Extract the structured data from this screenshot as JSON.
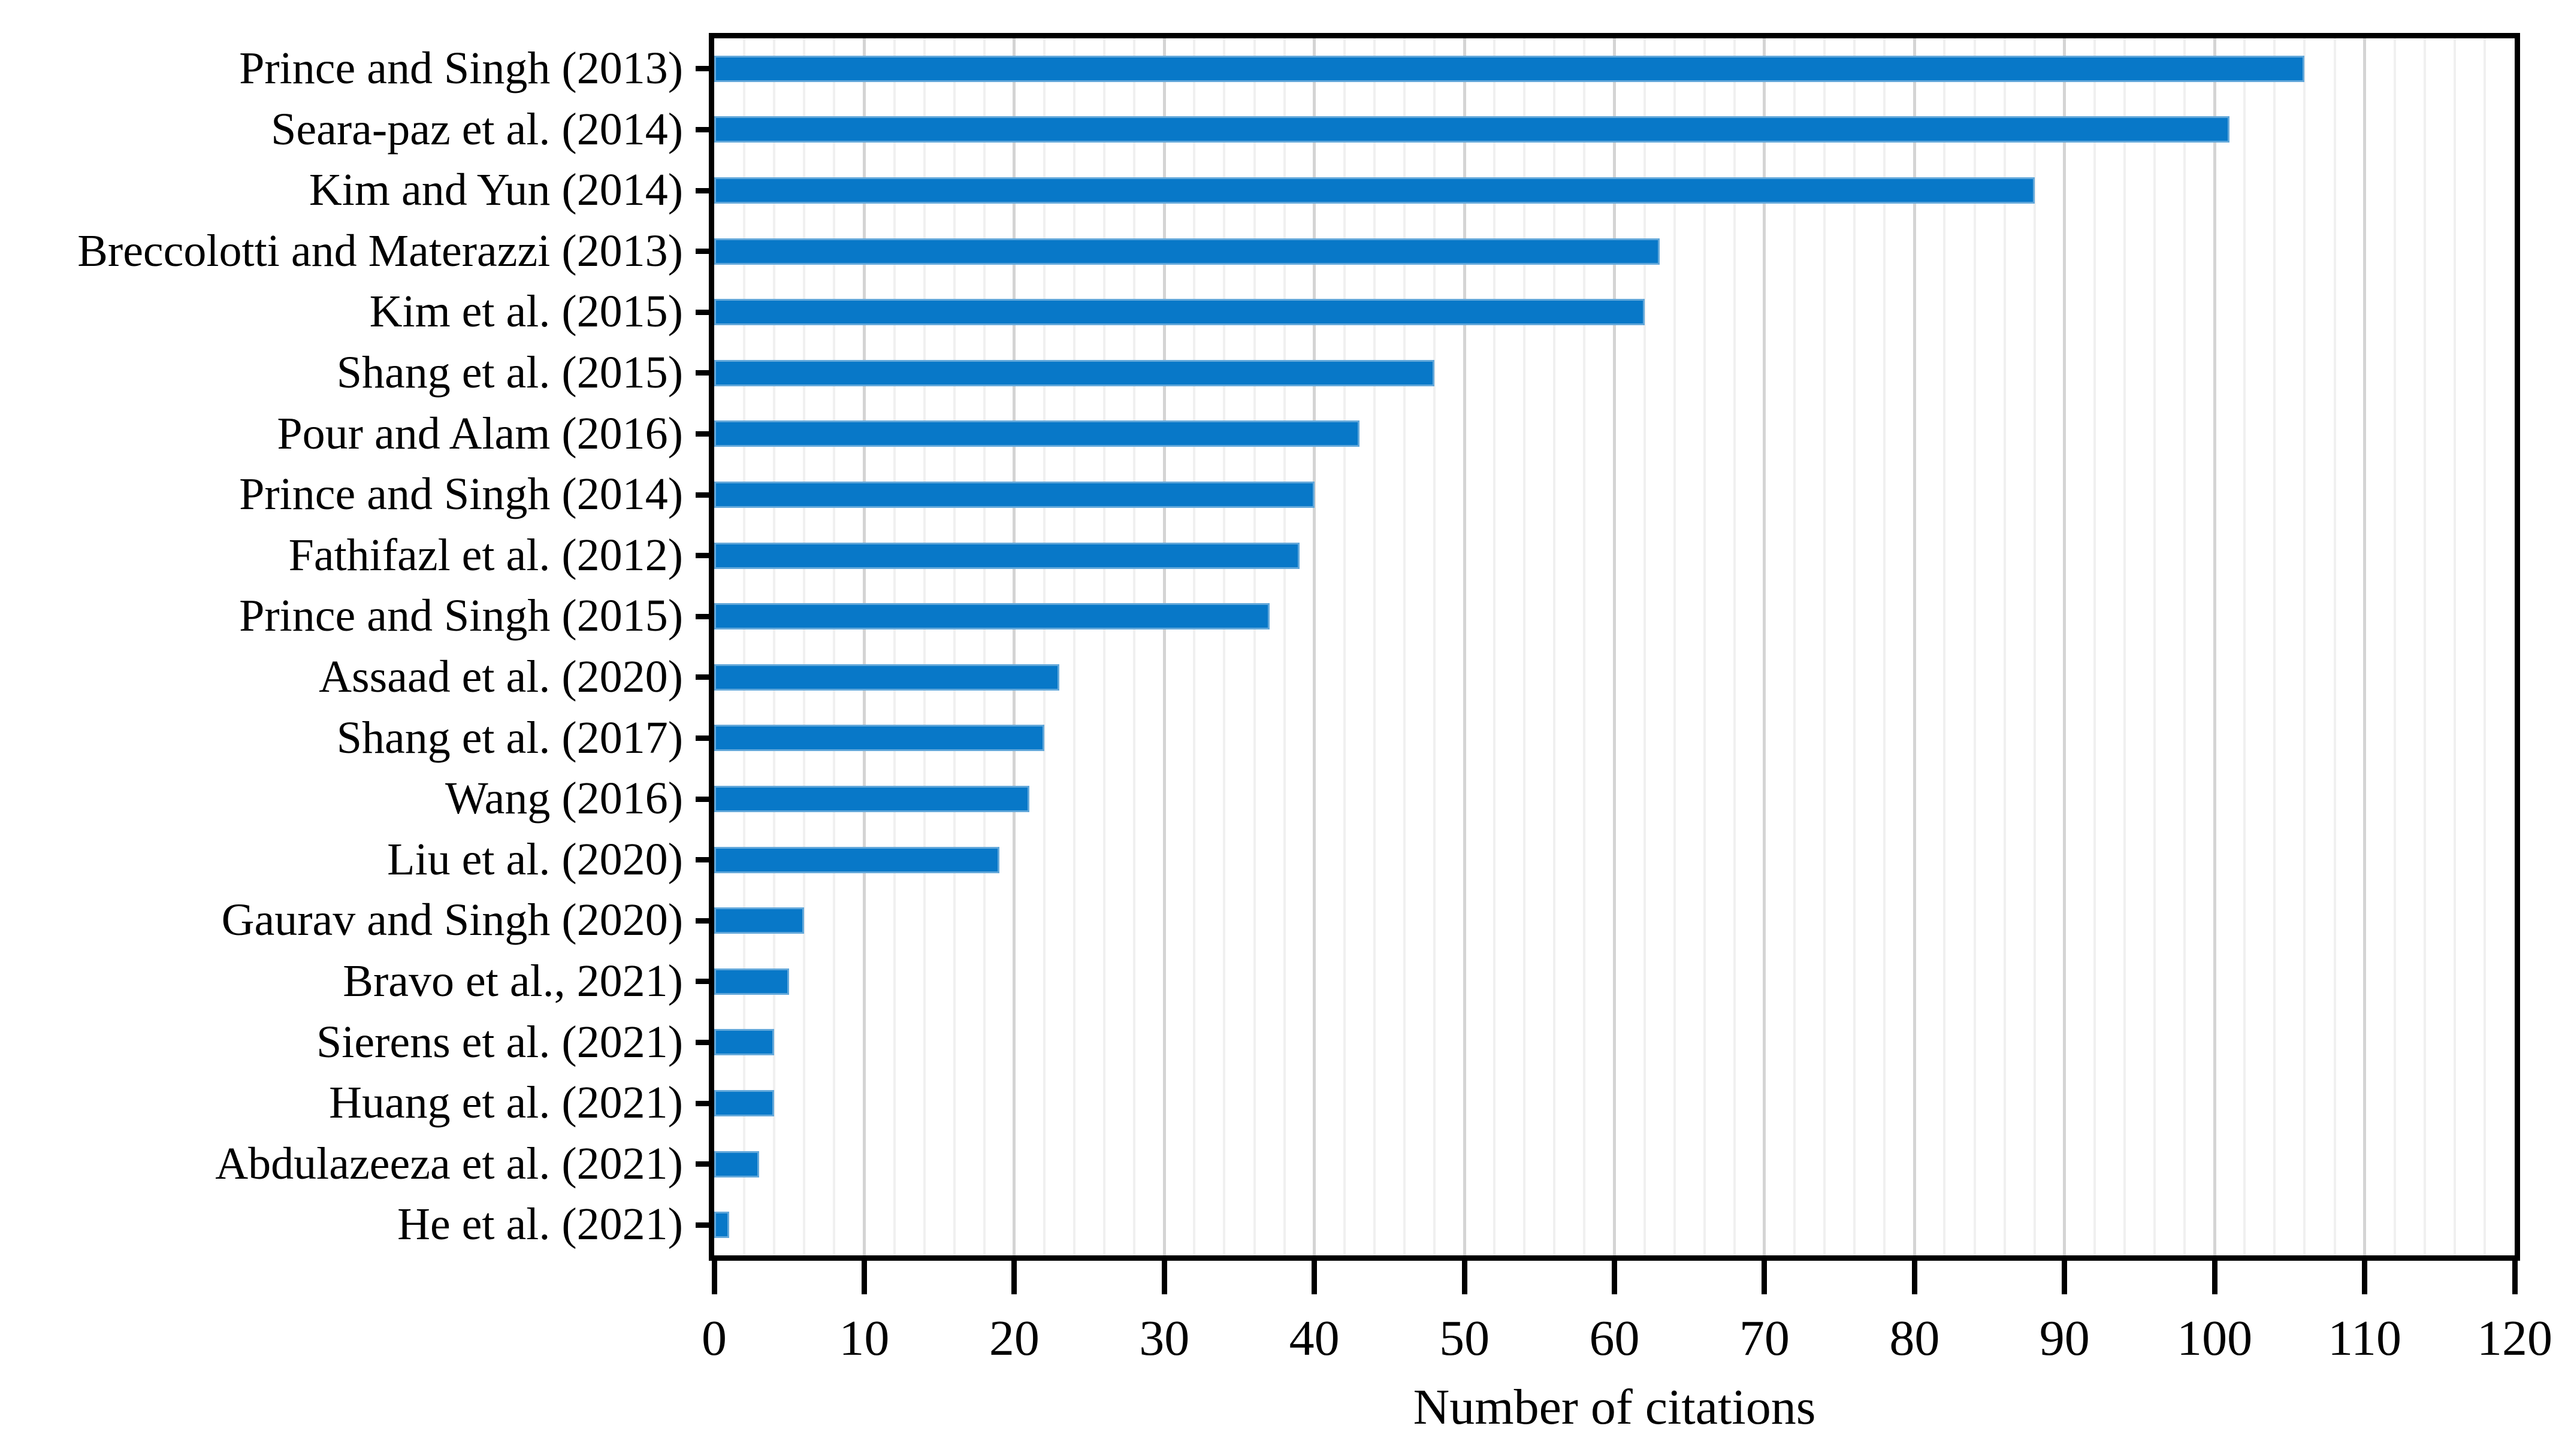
{
  "chart_data": {
    "type": "bar",
    "orientation": "horizontal",
    "title": "",
    "xlabel": "Number of citations",
    "ylabel": "",
    "xlim": [
      0,
      120
    ],
    "x_ticks": [
      0,
      10,
      20,
      30,
      40,
      50,
      60,
      70,
      80,
      90,
      100,
      110,
      120
    ],
    "minor_grid_step": 2,
    "major_grid_step": 10,
    "grid": "vertical",
    "legend_position": "none",
    "categories": [
      "Prince and Singh (2013)",
      "Seara-paz et al. (2014)",
      "Kim and Yun (2014)",
      "Breccolotti and Materazzi (2013)",
      "Kim et al. (2015)",
      "Shang et al. (2015)",
      "Pour and Alam (2016)",
      "Prince and Singh (2014)",
      "Fathifazl et al. (2012)",
      "Prince and Singh (2015)",
      "Assaad et al. (2020)",
      "Shang et al. (2017)",
      "Wang (2016)",
      "Liu et al. (2020)",
      "Gaurav and Singh (2020)",
      "Bravo et al., 2021)",
      "Sierens et al. (2021)",
      "Huang et al. (2021)",
      "Abdulazeeza et al. (2021)",
      "He et al. (2021)"
    ],
    "values": [
      106,
      101,
      88,
      63,
      62,
      48,
      43,
      40,
      39,
      37,
      23,
      22,
      21,
      19,
      6,
      5,
      4,
      4,
      3,
      1
    ],
    "colors": {
      "bar_fill": "#0878c8",
      "bar_edge": "#63a8da",
      "major_grid": "#d4d4d4",
      "minor_grid": "#f0f0f0",
      "axis": "#000000",
      "text": "#000000"
    }
  }
}
